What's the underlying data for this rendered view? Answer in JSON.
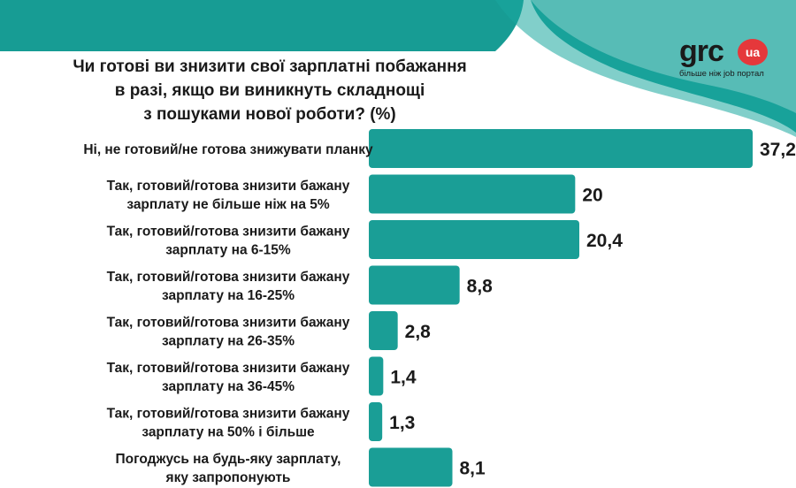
{
  "header": {
    "title_lines": [
      "Чи готові ви знизити свої зарплатні побажання",
      "в разі, якщо ви виникнуть складнощі",
      "з пошуками нової роботи? (%)"
    ]
  },
  "logo": {
    "word": "grc",
    "badge": "ua",
    "tagline": "більше ніж job портал"
  },
  "colors": {
    "bar": "#1a9e96",
    "accent_band": "#179c94",
    "accent_light": "#cfeeec"
  },
  "chart_data": {
    "type": "bar",
    "orientation": "horizontal",
    "title": "Чи готові ви знизити свої зарплатні побажання в разі, якщо ви виникнуть складнощі з пошуками нової роботи? (%)",
    "categories": [
      [
        "Ні, не готовий/не готова знижувати планку"
      ],
      [
        "Так, готовий/готова знизити бажану",
        "зарплату не більше ніж на 5%"
      ],
      [
        "Так, готовий/готова знизити бажану",
        "зарплату на 6-15%"
      ],
      [
        "Так, готовий/готова знизити бажану",
        "зарплату на 16-25%"
      ],
      [
        "Так, готовий/готова знизити бажану",
        "зарплату на 26-35%"
      ],
      [
        "Так, готовий/готова знизити бажану",
        "зарплату на 36-45%"
      ],
      [
        "Так, готовий/готова знизити бажану",
        "зарплату на 50% і більше"
      ],
      [
        "Погоджусь на будь-яку зарплату,",
        "яку запропонують"
      ]
    ],
    "values": [
      37.2,
      20,
      20.4,
      8.8,
      2.8,
      1.4,
      1.3,
      8.1
    ],
    "value_labels": [
      "37,2",
      "20",
      "20,4",
      "8,8",
      "2,8",
      "1,4",
      "1,3",
      "8,1"
    ],
    "xlim": [
      0,
      37.2
    ],
    "grid": false,
    "legend": "none"
  }
}
